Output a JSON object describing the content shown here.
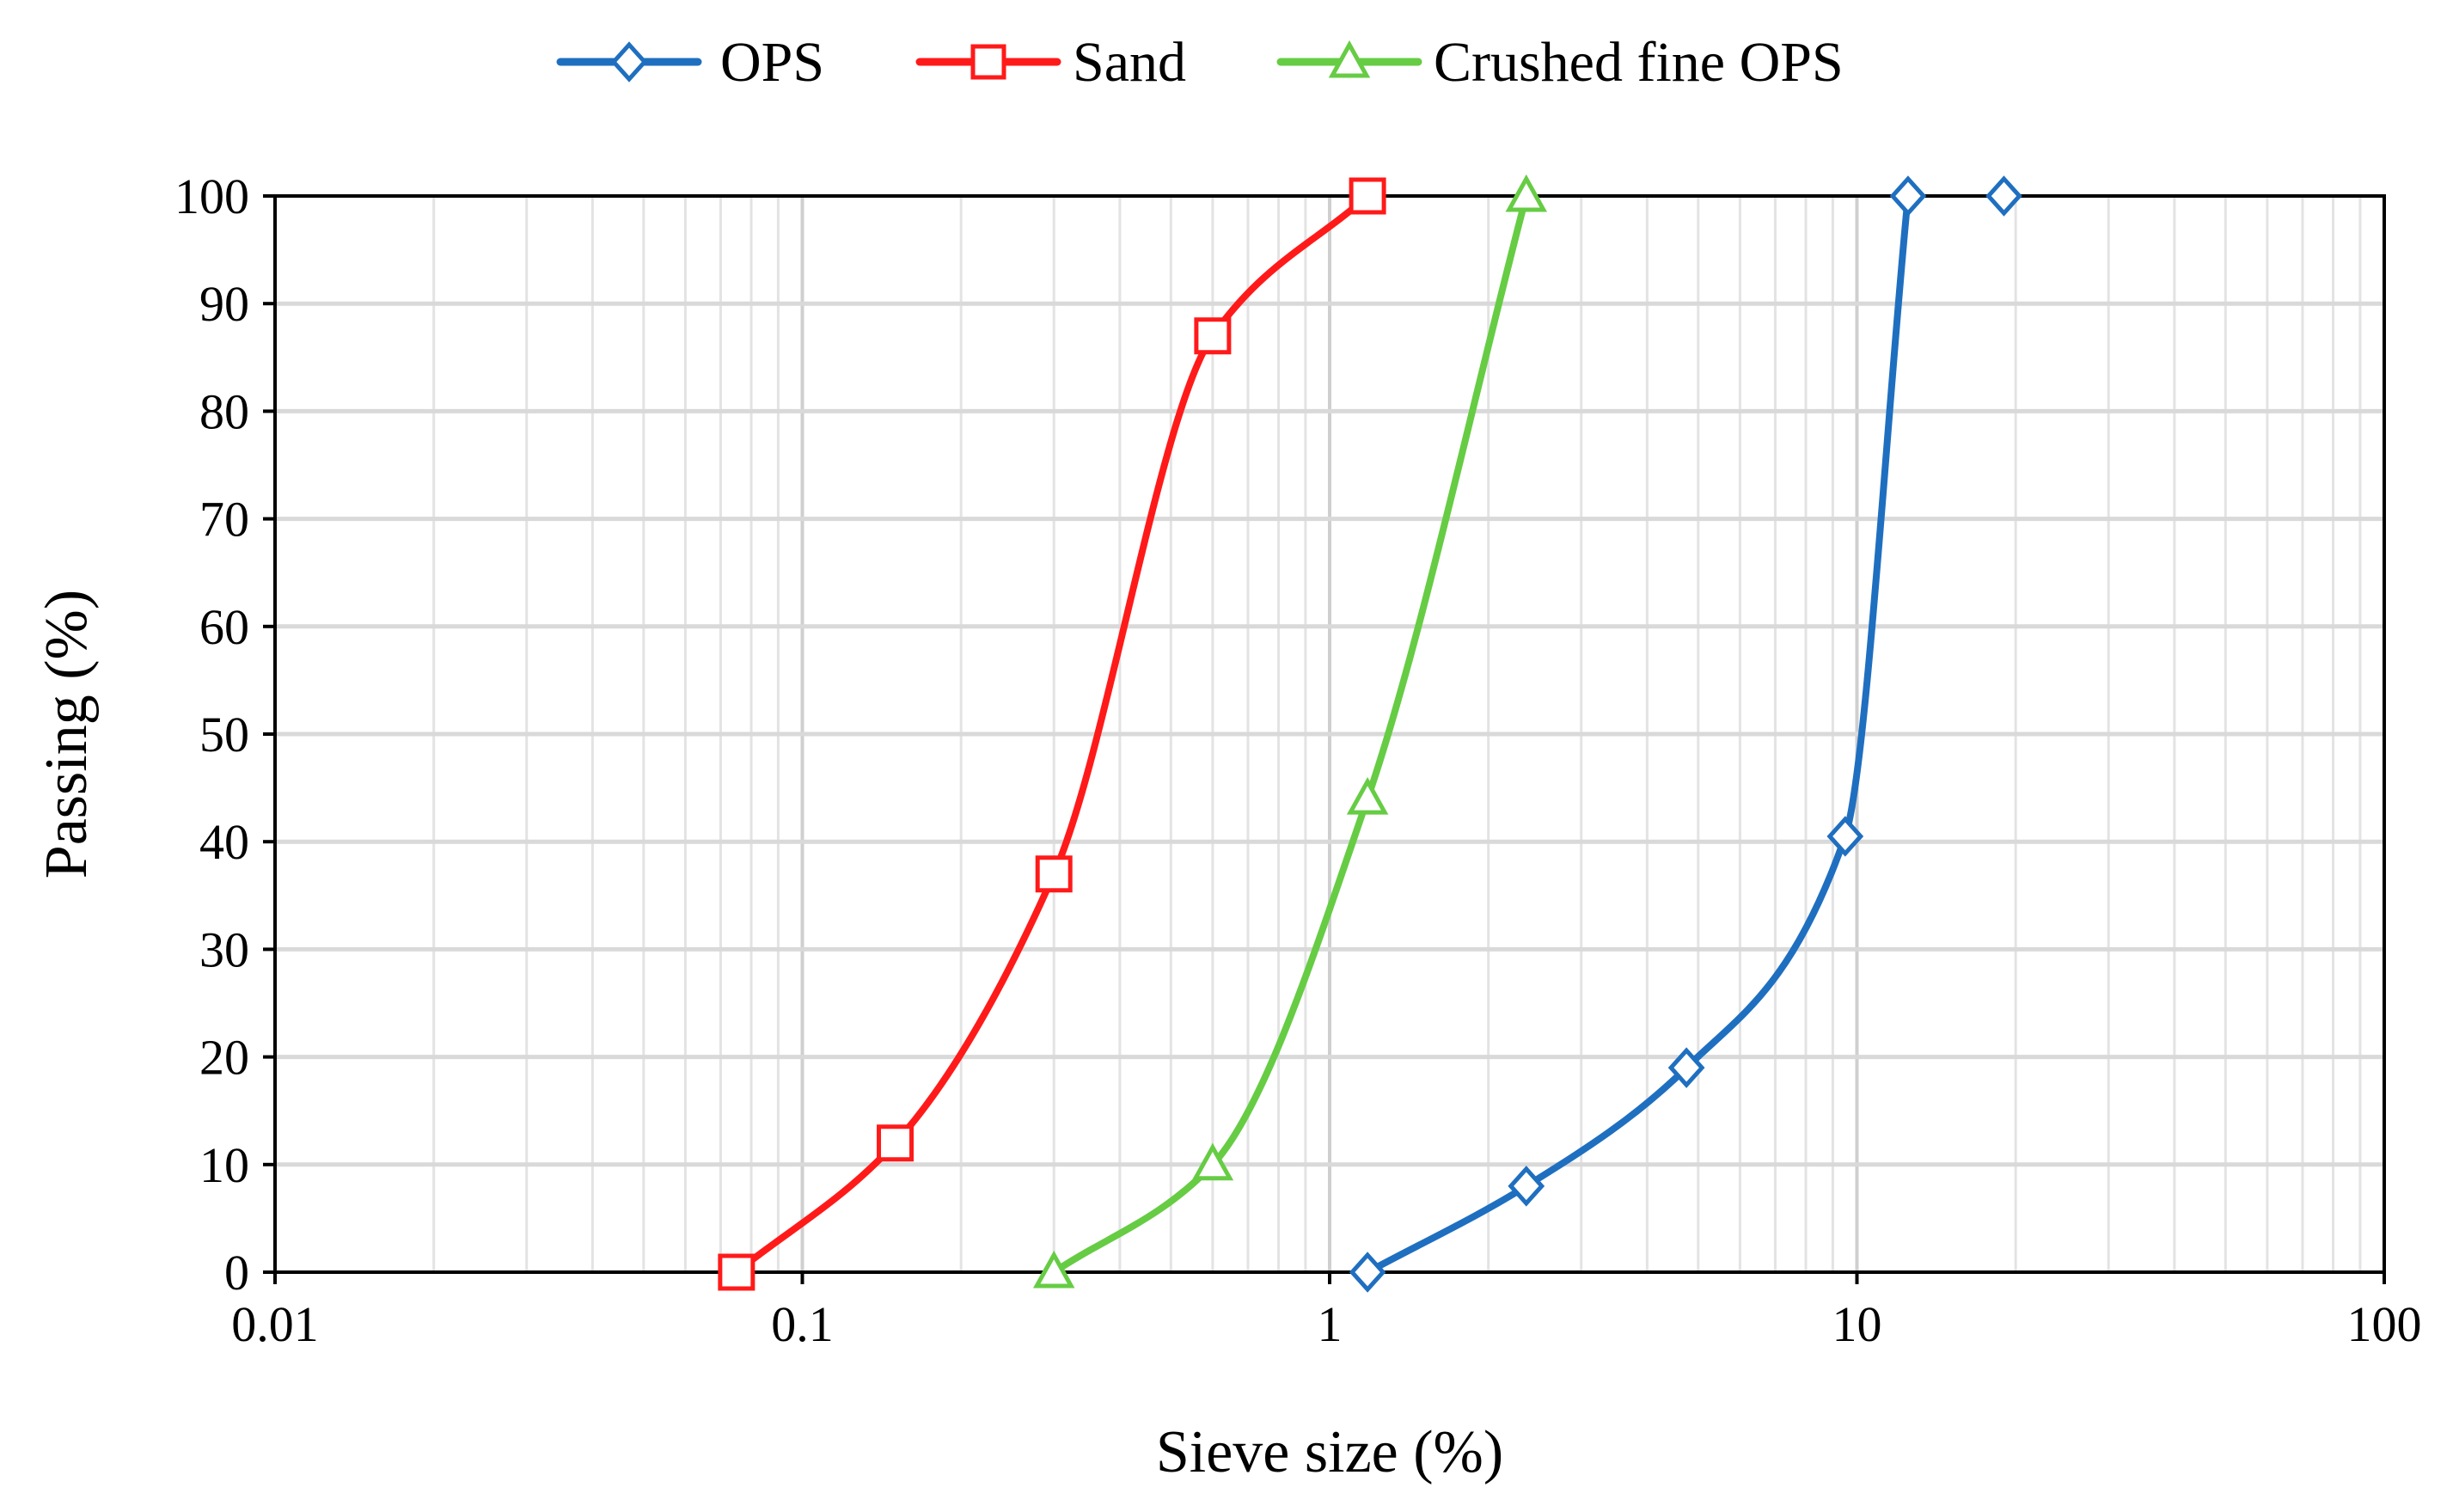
{
  "chart_data": {
    "type": "line",
    "x_scale": "log",
    "xlabel": "Sieve size (%)",
    "ylabel": "Passing (%)",
    "xlim": [
      0.01,
      100
    ],
    "ylim": [
      0,
      100
    ],
    "x_ticks": [
      0.01,
      0.1,
      1,
      10,
      100
    ],
    "x_tick_labels": [
      "0.01",
      "0.1",
      "1",
      "10",
      "100"
    ],
    "y_ticks": [
      0,
      10,
      20,
      30,
      40,
      50,
      60,
      70,
      80,
      90,
      100
    ],
    "y_tick_labels": [
      "0",
      "10",
      "20",
      "30",
      "40",
      "50",
      "60",
      "70",
      "80",
      "90",
      "100"
    ],
    "grid": true,
    "legend_position": "top",
    "series": [
      {
        "name": "OPS",
        "color": "#1f6fc0",
        "marker": "diamond",
        "x": [
          1.18,
          2.36,
          4.75,
          9.5,
          12.5,
          19
        ],
        "y": [
          0,
          8,
          19,
          40.5,
          100,
          100
        ]
      },
      {
        "name": "Sand",
        "color": "#ff1a1a",
        "marker": "square",
        "x": [
          0.075,
          0.15,
          0.3,
          0.6,
          1.18
        ],
        "y": [
          0,
          12,
          37,
          87,
          100
        ]
      },
      {
        "name": "Crushed fine OPS",
        "color": "#66cc44",
        "marker": "triangle",
        "x": [
          0.3,
          0.6,
          1.18,
          2.36
        ],
        "y": [
          0,
          10,
          44,
          100
        ]
      }
    ]
  }
}
